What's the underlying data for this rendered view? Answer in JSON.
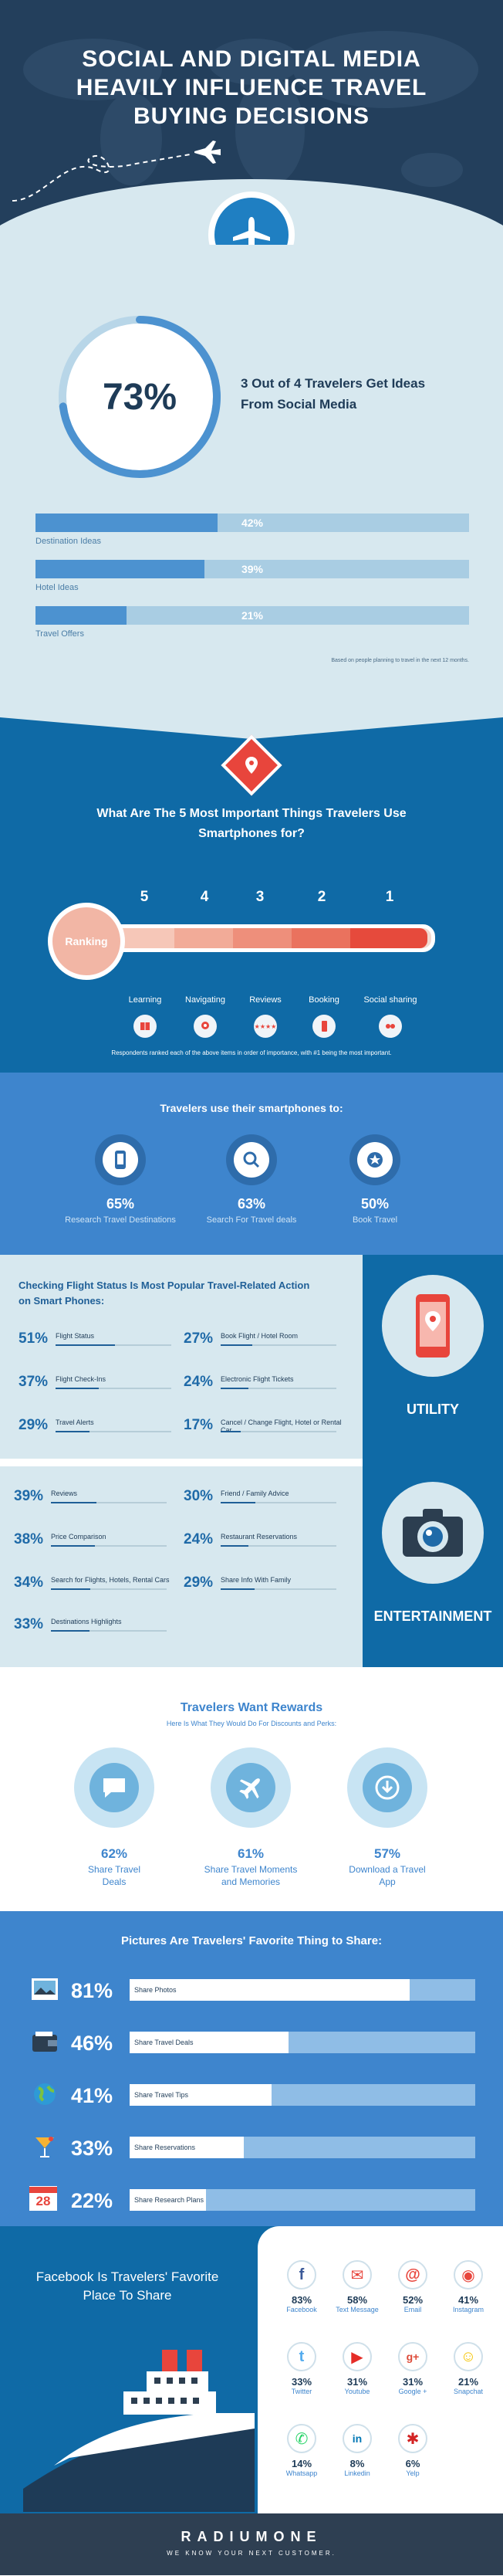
{
  "header": {
    "title": "SOCIAL AND DIGITAL MEDIA HEAVILY INFLUENCE TRAVEL BUYING DECISIONS"
  },
  "stats": {
    "ring_value": "73%",
    "ring_fraction": 0.73,
    "headline": "3 Out of 4 Travelers Get Ideas From Social Media",
    "bars": [
      {
        "label": "Destination Ideas",
        "value": "42%",
        "fraction": 0.42
      },
      {
        "label": "Hotel Ideas",
        "value": "39%",
        "fraction": 0.39
      },
      {
        "label": "Travel Offers",
        "value": "21%",
        "fraction": 0.21
      }
    ],
    "note": "Based on people planning to travel in the next 12 months."
  },
  "uses": {
    "title": "What Are The 5 Most Important Things Travelers Use Smartphones for?",
    "ranking_label": "Ranking",
    "ranks": [
      {
        "num": "5",
        "label": "Learning",
        "icon": "book-icon"
      },
      {
        "num": "4",
        "label": "Navigating",
        "icon": "map-pin-icon"
      },
      {
        "num": "3",
        "label": "Reviews",
        "icon": "stars-icon"
      },
      {
        "num": "2",
        "label": "Booking",
        "icon": "phone-icon"
      },
      {
        "num": "1",
        "label": "Social sharing",
        "icon": "share-icon"
      }
    ],
    "footnote": "Respondents ranked each of the above items in order of importance, with #1 being the most important."
  },
  "smart": {
    "title": "Travelers use their smartphones to:",
    "items": [
      {
        "pct": "65%",
        "label": "Research Travel Destinations",
        "icon": "smartphone-icon"
      },
      {
        "pct": "63%",
        "label": "Search For Travel deals",
        "icon": "search-icon"
      },
      {
        "pct": "50%",
        "label": "Book Travel",
        "icon": "star-icon"
      }
    ]
  },
  "utility": {
    "title": "Checking Flight Status Is Most Popular Travel-Related Action on Smart Phones:",
    "category": "UTILITY",
    "left": [
      {
        "pct": "51%",
        "label": "Flight Status",
        "fraction": 0.51
      },
      {
        "pct": "37%",
        "label": "Flight Check-Ins",
        "fraction": 0.37
      },
      {
        "pct": "29%",
        "label": "Travel Alerts",
        "fraction": 0.29
      }
    ],
    "right": [
      {
        "pct": "27%",
        "label": "Book Flight / Hotel Room",
        "fraction": 0.27
      },
      {
        "pct": "24%",
        "label": "Electronic Flight Tickets",
        "fraction": 0.24
      },
      {
        "pct": "17%",
        "label": "Cancel / Change Flight, Hotel or Rental Car",
        "fraction": 0.17
      }
    ]
  },
  "entertainment": {
    "category": "ENTERTAINMENT",
    "left": [
      {
        "pct": "39%",
        "label": "Reviews",
        "fraction": 0.39
      },
      {
        "pct": "38%",
        "label": "Price Comparison",
        "fraction": 0.38
      },
      {
        "pct": "34%",
        "label": "Search for Flights, Hotels, Rental Cars",
        "fraction": 0.34
      },
      {
        "pct": "33%",
        "label": "Destinations Highlights",
        "fraction": 0.33
      }
    ],
    "right": [
      {
        "pct": "30%",
        "label": "Friend / Family Advice",
        "fraction": 0.3
      },
      {
        "pct": "24%",
        "label": "Restaurant Reservations",
        "fraction": 0.24
      },
      {
        "pct": "29%",
        "label": "Share Info With Family",
        "fraction": 0.29
      }
    ]
  },
  "rewards": {
    "title": "Travelers Want Rewards",
    "subtitle": "Here Is What They Would Do For Discounts and Perks:",
    "items": [
      {
        "pct": "62%",
        "label": "Share Travel Deals",
        "icon": "chat-bubble-icon"
      },
      {
        "pct": "61%",
        "label": "Share Travel Moments and Memories",
        "icon": "airplane-icon"
      },
      {
        "pct": "57%",
        "label": "Download a Travel App",
        "icon": "download-icon"
      }
    ]
  },
  "pictures": {
    "title": "Pictures Are Travelers' Favorite Thing to Share:",
    "rows": [
      {
        "pct": "81%",
        "label": "Share Photos",
        "fraction": 0.81,
        "icon": "photo-icon"
      },
      {
        "pct": "46%",
        "label": "Share Travel Deals",
        "fraction": 0.46,
        "icon": "wallet-icon"
      },
      {
        "pct": "41%",
        "label": "Share Travel Tips",
        "fraction": 0.41,
        "icon": "globe-icon"
      },
      {
        "pct": "33%",
        "label": "Share Reservations",
        "fraction": 0.33,
        "icon": "cocktail-icon"
      },
      {
        "pct": "22%",
        "label": "Share Research Plans",
        "fraction": 0.22,
        "icon": "calendar-icon"
      }
    ],
    "calendar_day": "28"
  },
  "social": {
    "title": "Facebook Is Travelers' Favorite Place To Share",
    "networks": [
      {
        "pct": "83%",
        "name": "Facebook",
        "glyph": "f",
        "color": "#3b5998"
      },
      {
        "pct": "58%",
        "name": "Text Message",
        "glyph": "✉",
        "color": "#e8453c"
      },
      {
        "pct": "52%",
        "name": "Email",
        "glyph": "@",
        "color": "#e8453c"
      },
      {
        "pct": "41%",
        "name": "Instagram",
        "glyph": "◉",
        "color": "#e8453c"
      },
      {
        "pct": "33%",
        "name": "Twitter",
        "glyph": "t",
        "color": "#55acee"
      },
      {
        "pct": "31%",
        "name": "Youtube",
        "glyph": "▶",
        "color": "#e52d27"
      },
      {
        "pct": "31%",
        "name": "Google +",
        "glyph": "g+",
        "color": "#dd4b39"
      },
      {
        "pct": "21%",
        "name": "Snapchat",
        "glyph": "☺",
        "color": "#f5c400"
      },
      {
        "pct": "14%",
        "name": "Whatsapp",
        "glyph": "✆",
        "color": "#25d366"
      },
      {
        "pct": "8%",
        "name": "Linkedin",
        "glyph": "in",
        "color": "#0077b5"
      },
      {
        "pct": "6%",
        "name": "Yelp",
        "glyph": "✱",
        "color": "#d32323"
      }
    ]
  },
  "footer": {
    "logo": "RADIUMONE",
    "tagline": "WE KNOW YOUR NEXT CUSTOMER."
  }
}
